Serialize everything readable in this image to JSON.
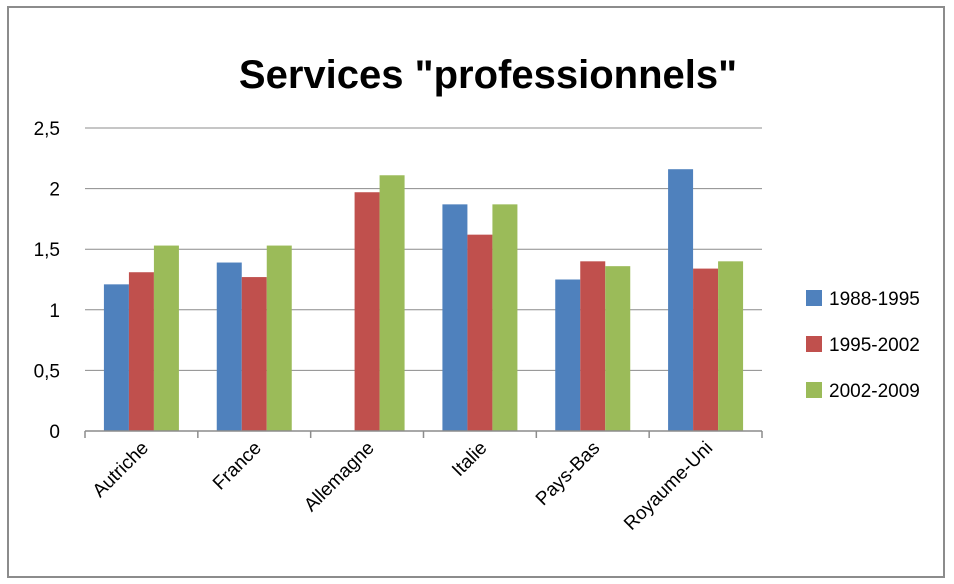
{
  "chart_data": {
    "type": "bar",
    "title": "Services \"professionnels\"",
    "xlabel": "",
    "ylabel": "",
    "categories": [
      "Autriche",
      "France",
      "Allemagne",
      "Italie",
      "Pays-Bas",
      "Royaume-Uni"
    ],
    "series": [
      {
        "name": "1988-1995",
        "color": "#4f81bd",
        "values": [
          1.21,
          1.39,
          null,
          1.87,
          1.25,
          2.16
        ]
      },
      {
        "name": "1995-2002",
        "color": "#c0504d",
        "values": [
          1.31,
          1.27,
          1.97,
          1.62,
          1.4,
          1.34
        ]
      },
      {
        "name": "2002-2009",
        "color": "#9bbb59",
        "values": [
          1.53,
          1.53,
          2.11,
          1.87,
          1.36,
          1.4
        ]
      }
    ],
    "ylim": [
      0,
      2.5
    ],
    "yticks": [
      {
        "value": 0,
        "label": "0"
      },
      {
        "value": 0.5,
        "label": "0,5"
      },
      {
        "value": 1,
        "label": "1"
      },
      {
        "value": 1.5,
        "label": "1,5"
      },
      {
        "value": 2,
        "label": "2"
      },
      {
        "value": 2.5,
        "label": "2,5"
      }
    ],
    "grid": true,
    "legend_position": "right"
  }
}
